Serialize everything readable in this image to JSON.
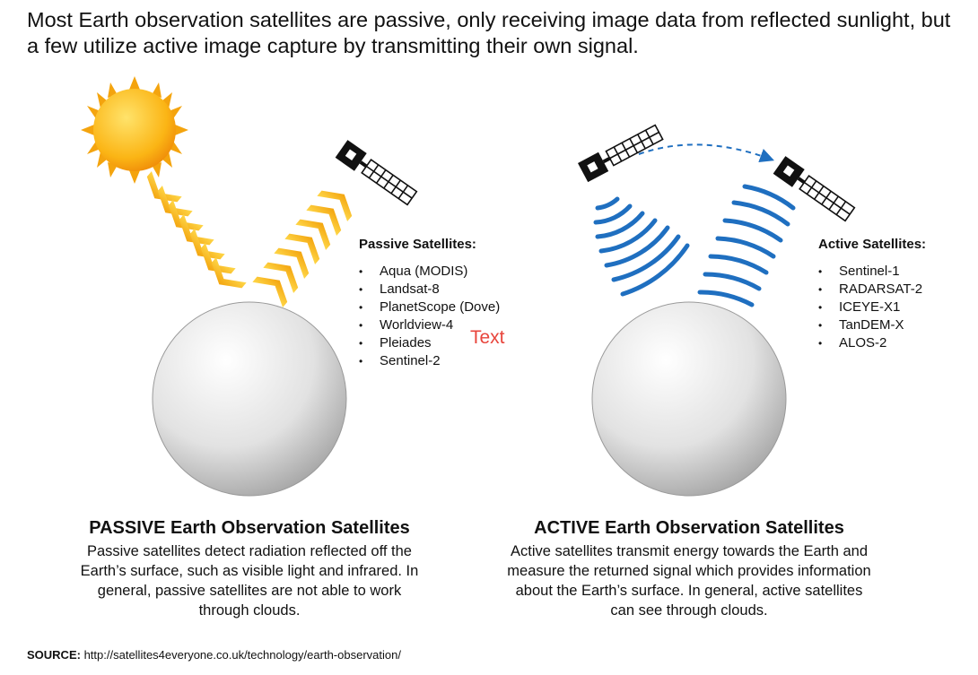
{
  "headline": "Most Earth observation satellites are passive, only receiving image data from reflected sunlight, but a few utilize active image capture by transmitting their own signal.",
  "passive": {
    "list_title": "Passive Satellites:",
    "items": [
      "Aqua (MODIS)",
      "Landsat-8",
      "PlanetScope (Dove)",
      "Worldview-4",
      "Pleiades",
      "Sentinel-2"
    ],
    "section_title": "PASSIVE Earth Observation Satellites",
    "description": "Passive satellites detect radiation reflected off the Earth’s surface, such as visible light and infrared. In general, passive satellites are not able to work through clouds."
  },
  "active": {
    "list_title": "Active Satellites:",
    "items": [
      "Sentinel-1",
      "RADARSAT-2",
      "ICEYE-X1",
      "TanDEM-X",
      "ALOS-2"
    ],
    "section_title": "ACTIVE Earth Observation Satellites",
    "description": "Active satellites transmit energy towards the Earth and measure the returned signal which provides information about the Earth’s surface. In general, active satellites can see through clouds."
  },
  "annotation": "Text",
  "source": {
    "label": "SOURCE:",
    "url": "http://satellites4everyone.co.uk/technology/earth-observation/"
  },
  "colors": {
    "sun": "#f7a912",
    "chevron": "#f5b90f",
    "signal": "#1f6fc0",
    "annotation": "#e8453c",
    "globe_land": "#8f8f8f",
    "globe_ocean": "#e6e6e6"
  },
  "icons": [
    "sun-icon",
    "satellite-icon",
    "globe-icon",
    "signal-wave-icon",
    "chevron-beam-icon",
    "orbit-arrow-icon"
  ]
}
